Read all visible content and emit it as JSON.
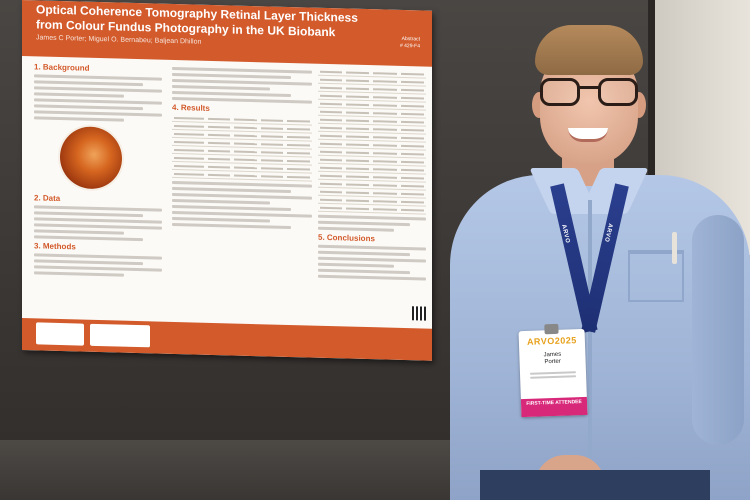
{
  "poster": {
    "title": "Optical Coherence Tomography Retinal Layer Thickness from Colour Fundus Photography in the UK Biobank",
    "authors": "James C Porter; Miguel O. Bernabeu; Baljean Dhillon",
    "abstract_label": "Abstract",
    "abstract_id": "# 429-F4",
    "sections": {
      "background": "1. Background",
      "data": "2. Data",
      "methods": "3. Methods",
      "results": "4. Results",
      "conclusions": "5. Conclusions"
    }
  },
  "badge": {
    "logo": "ARVO2025",
    "name_first": "James",
    "name_last": "Porter",
    "strip": "FIRST-TIME ATTENDEE"
  },
  "lanyard_text": "ARVO",
  "colors": {
    "poster_accent": "#d35a2b",
    "lanyard": "#2a3f8f",
    "badge_strip": "#d8287a"
  }
}
